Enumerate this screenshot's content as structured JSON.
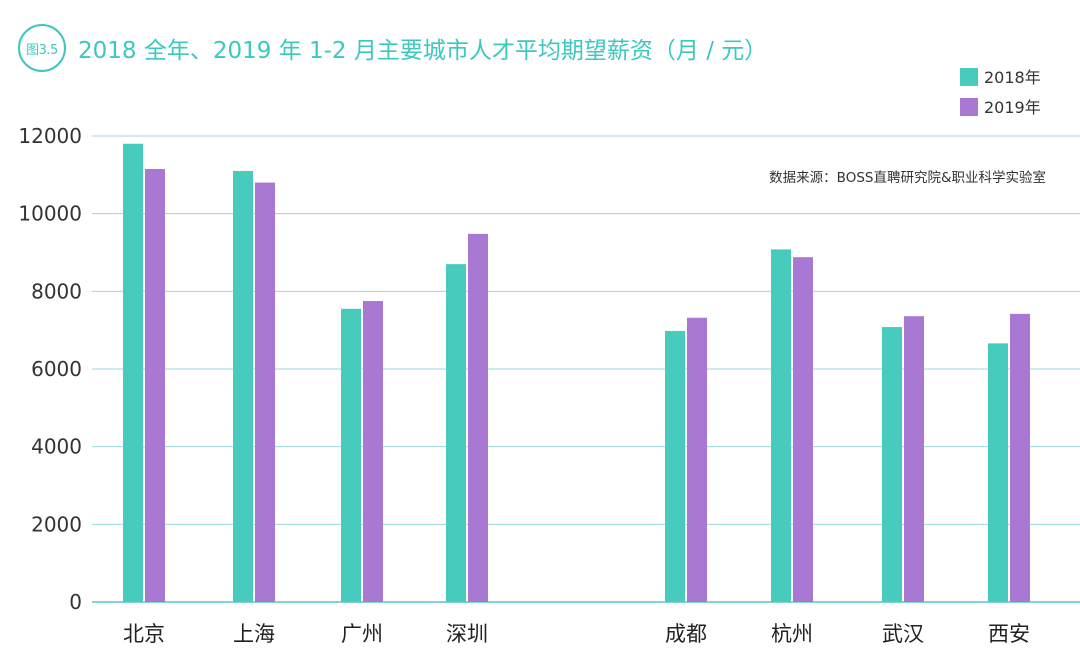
{
  "figure_label": "图3.5",
  "source_note": "数据来源：BOSS直聘研究院&职业科学实验室",
  "chart_data": {
    "type": "bar",
    "title": "2018 全年、2019 年 1-2 月主要城市人才平均期望薪资（月 / 元）",
    "categories": [
      "北京",
      "上海",
      "广州",
      "深圳",
      "成都",
      "杭州",
      "武汉",
      "西安"
    ],
    "series": [
      {
        "name": "2018年",
        "color": "#47cbbd",
        "values": [
          11800,
          11100,
          7550,
          8700,
          6980,
          9080,
          7080,
          6660
        ]
      },
      {
        "name": "2019年",
        "color": "#a878d2",
        "values": [
          11150,
          10800,
          7750,
          9480,
          7320,
          8880,
          7360,
          7420
        ]
      }
    ],
    "yticks": [
      0,
      2000,
      4000,
      6000,
      8000,
      10000,
      12000
    ],
    "ylim": [
      0,
      12000
    ],
    "grid": true,
    "legend_position": "top-right",
    "xlabel": "",
    "ylabel": ""
  }
}
